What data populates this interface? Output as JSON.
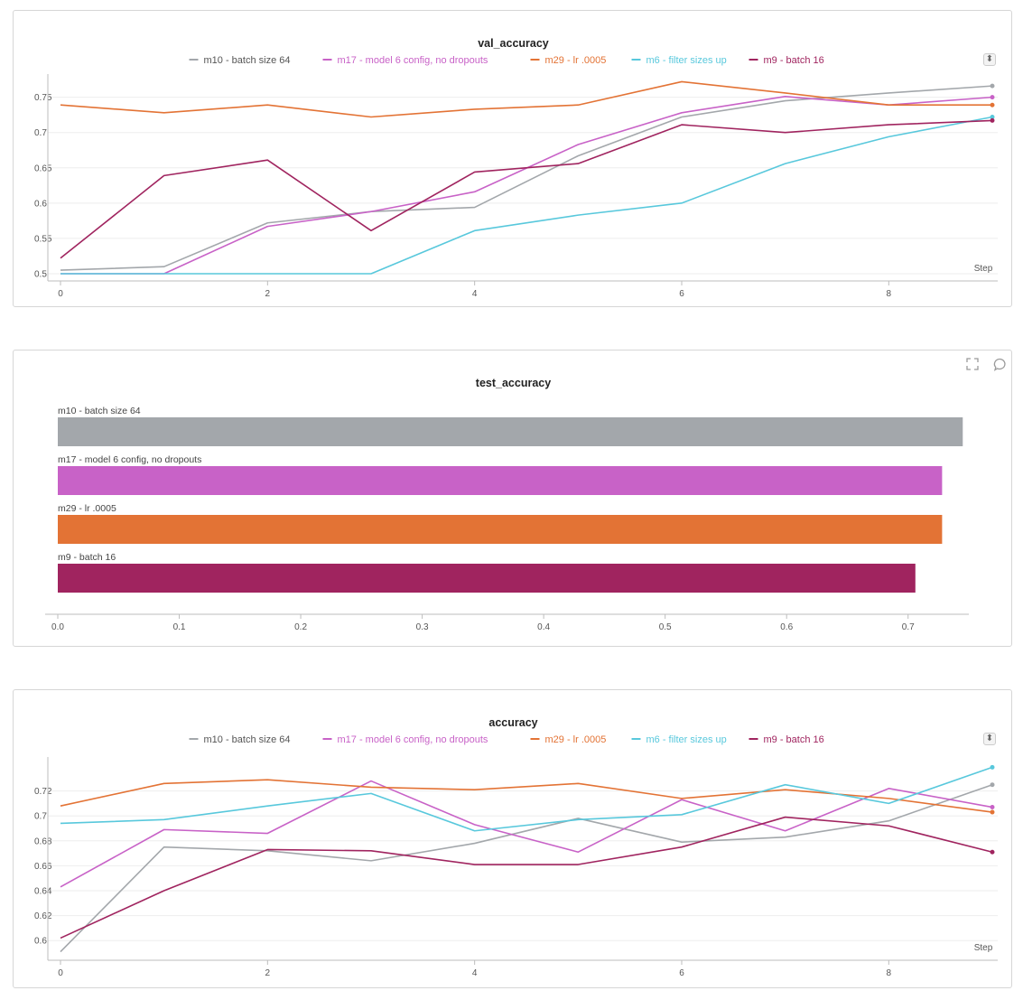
{
  "colors": {
    "m10": "#a3a7ab",
    "m17": "#c862c7",
    "m29": "#e37335",
    "m6": "#58c8dc",
    "m9": "#a0245f"
  },
  "legend": [
    {
      "key": "m10",
      "label": "m10 - batch size 64"
    },
    {
      "key": "m17",
      "label": "m17 - model 6 config, no dropouts"
    },
    {
      "key": "m29",
      "label": "m29 - lr .0005"
    },
    {
      "key": "m6",
      "label": "m6 - filter sizes up"
    },
    {
      "key": "m9",
      "label": "m9 - batch 16"
    }
  ],
  "panels": {
    "val": {
      "expand_icon": "sort-toggle-icon"
    },
    "test": {
      "fullscreen_icon": "fullscreen-icon",
      "comment_icon": "comment-icon"
    },
    "acc": {
      "expand_icon": "sort-toggle-icon"
    }
  },
  "chart_data": [
    {
      "type": "line",
      "title": "val_accuracy",
      "xlabel": "Step",
      "ylabel": "",
      "x": [
        0,
        1,
        2,
        3,
        4,
        5,
        6,
        7,
        8,
        9
      ],
      "xticks": [
        0,
        2,
        4,
        6,
        8
      ],
      "yticks": [
        0.5,
        0.55,
        0.6,
        0.65,
        0.7,
        0.75
      ],
      "ytick_labels": [
        "0.5",
        "0.55",
        "0.6",
        "0.65",
        "0.7",
        "0.75"
      ],
      "ylim": [
        0.5,
        0.77
      ],
      "series": [
        {
          "key": "m10",
          "name": "m10 - batch size 64",
          "values": [
            0.505,
            0.51,
            0.572,
            0.588,
            0.594,
            0.667,
            0.722,
            0.745,
            0.756,
            0.766
          ]
        },
        {
          "key": "m17",
          "name": "m17 - model 6 config, no dropouts",
          "values": [
            0.5,
            0.5,
            0.567,
            0.588,
            0.616,
            0.683,
            0.728,
            0.751,
            0.739,
            0.75
          ]
        },
        {
          "key": "m29",
          "name": "m29 - lr .0005",
          "values": [
            0.739,
            0.728,
            0.739,
            0.722,
            0.733,
            0.739,
            0.772,
            0.756,
            0.739,
            0.739
          ]
        },
        {
          "key": "m6",
          "name": "m6 - filter sizes up",
          "values": [
            0.5,
            0.5,
            0.5,
            0.5,
            0.561,
            0.583,
            0.6,
            0.656,
            0.694,
            0.722
          ]
        },
        {
          "key": "m9",
          "name": "m9 - batch 16",
          "values": [
            0.522,
            0.639,
            0.661,
            0.561,
            0.644,
            0.656,
            0.711,
            0.7,
            0.711,
            0.717
          ]
        }
      ]
    },
    {
      "type": "bar",
      "orientation": "horizontal",
      "title": "test_accuracy",
      "xlim": [
        0,
        0.75
      ],
      "xticks": [
        0,
        0.1,
        0.2,
        0.3,
        0.4,
        0.5,
        0.6,
        0.7
      ],
      "xtick_labels": [
        "0.0",
        "0.1",
        "0.2",
        "0.3",
        "0.4",
        "0.5",
        "0.6",
        "0.7"
      ],
      "categories": [
        "m10 - batch size 64",
        "m17 - model 6 config, no dropouts",
        "m29 - lr .0005",
        "m9 - batch 16"
      ],
      "keys": [
        "m10",
        "m17",
        "m29",
        "m9"
      ],
      "values": [
        0.745,
        0.728,
        0.728,
        0.706
      ]
    },
    {
      "type": "line",
      "title": "accuracy",
      "xlabel": "Step",
      "ylabel": "",
      "x": [
        0,
        1,
        2,
        3,
        4,
        5,
        6,
        7,
        8,
        9
      ],
      "xticks": [
        0,
        2,
        4,
        6,
        8
      ],
      "yticks": [
        0.6,
        0.62,
        0.64,
        0.66,
        0.68,
        0.7,
        0.72
      ],
      "ytick_labels": [
        "0.6",
        "0.62",
        "0.64",
        "0.66",
        "0.68",
        "0.7",
        "0.72"
      ],
      "ylim": [
        0.59,
        0.74
      ],
      "series": [
        {
          "key": "m10",
          "name": "m10 - batch size 64",
          "values": [
            0.591,
            0.675,
            0.672,
            0.664,
            0.678,
            0.698,
            0.679,
            0.683,
            0.696,
            0.725
          ]
        },
        {
          "key": "m17",
          "name": "m17 - model 6 config, no dropouts",
          "values": [
            0.643,
            0.689,
            0.686,
            0.728,
            0.693,
            0.671,
            0.713,
            0.688,
            0.722,
            0.707
          ]
        },
        {
          "key": "m29",
          "name": "m29 - lr .0005",
          "values": [
            0.708,
            0.726,
            0.729,
            0.723,
            0.721,
            0.726,
            0.714,
            0.721,
            0.714,
            0.703
          ]
        },
        {
          "key": "m6",
          "name": "m6 - filter sizes up",
          "values": [
            0.694,
            0.697,
            0.708,
            0.718,
            0.688,
            0.697,
            0.701,
            0.725,
            0.71,
            0.739
          ]
        },
        {
          "key": "m9",
          "name": "m9 - batch 16",
          "values": [
            0.602,
            0.64,
            0.673,
            0.672,
            0.661,
            0.661,
            0.675,
            0.699,
            0.692,
            0.671
          ]
        }
      ]
    }
  ]
}
